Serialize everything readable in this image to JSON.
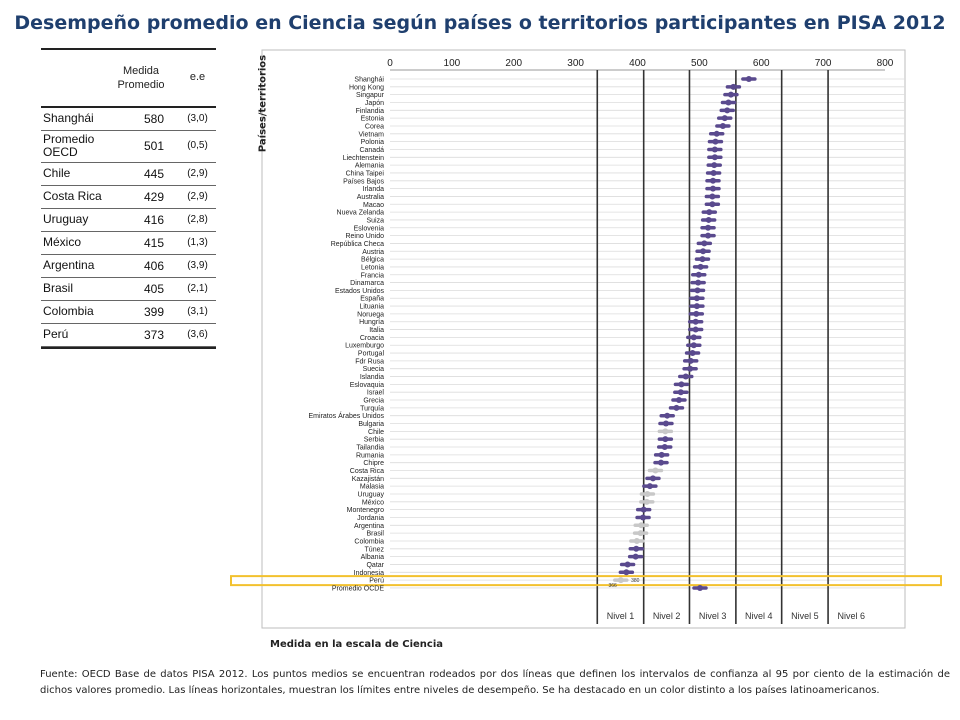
{
  "title": "Desempeño promedio en Ciencia según países o territorios participantes en PISA 2012",
  "table": {
    "header_mean": "Medida Promedio",
    "header_se": "e.e",
    "rows": [
      {
        "country": "Shanghái",
        "mean": "580",
        "se": "(3,0)"
      },
      {
        "country": "Promedio OECD",
        "mean": "501",
        "se": "(0,5)"
      },
      {
        "country": "Chile",
        "mean": "445",
        "se": "(2,9)"
      },
      {
        "country": "Costa Rica",
        "mean": "429",
        "se": "(2,9)"
      },
      {
        "country": "Uruguay",
        "mean": "416",
        "se": "(2,8)"
      },
      {
        "country": "México",
        "mean": "415",
        "se": "(1,3)"
      },
      {
        "country": "Argentina",
        "mean": "406",
        "se": "(3,9)"
      },
      {
        "country": "Brasil",
        "mean": "405",
        "se": "(2,1)"
      },
      {
        "country": "Colombia",
        "mean": "399",
        "se": "(3,1)"
      },
      {
        "country": "Perú",
        "mean": "373",
        "se": "(3,6)"
      }
    ]
  },
  "chart_data": {
    "type": "scatter",
    "title": "",
    "xlabel": "Medida en la escala de Ciencia",
    "ylabel": "Países/territorios",
    "xlim": [
      0,
      800
    ],
    "xticks": [
      0,
      100,
      200,
      300,
      400,
      500,
      600,
      700,
      800
    ],
    "grid": true,
    "levels": [
      {
        "label": "Nivel 1",
        "lower": 335
      },
      {
        "label": "Nivel 2",
        "lower": 410
      },
      {
        "label": "Nivel 3",
        "lower": 484
      },
      {
        "label": "Nivel 4",
        "lower": 559
      },
      {
        "label": "Nivel 5",
        "lower": 633
      },
      {
        "label": "Nivel 6",
        "lower": 708
      }
    ],
    "countries": [
      {
        "name": "Shanghái",
        "mean": 580,
        "latam": false
      },
      {
        "name": "Hong Kong",
        "mean": 555,
        "latam": false
      },
      {
        "name": "Singapur",
        "mean": 551,
        "latam": false
      },
      {
        "name": "Japón",
        "mean": 547,
        "latam": false
      },
      {
        "name": "Finlandia",
        "mean": 545,
        "latam": false
      },
      {
        "name": "Estonia",
        "mean": 541,
        "latam": false
      },
      {
        "name": "Corea",
        "mean": 538,
        "latam": false
      },
      {
        "name": "Vietnam",
        "mean": 528,
        "latam": false
      },
      {
        "name": "Polonia",
        "mean": 526,
        "latam": false
      },
      {
        "name": "Canadá",
        "mean": 525,
        "latam": false
      },
      {
        "name": "Liechtenstein",
        "mean": 525,
        "latam": false
      },
      {
        "name": "Alemania",
        "mean": 524,
        "latam": false
      },
      {
        "name": "China Taipei",
        "mean": 523,
        "latam": false
      },
      {
        "name": "Países Bajos",
        "mean": 522,
        "latam": false
      },
      {
        "name": "Irlanda",
        "mean": 522,
        "latam": false
      },
      {
        "name": "Australia",
        "mean": 521,
        "latam": false
      },
      {
        "name": "Macao",
        "mean": 521,
        "latam": false
      },
      {
        "name": "Nueva Zelanda",
        "mean": 516,
        "latam": false
      },
      {
        "name": "Suiza",
        "mean": 515,
        "latam": false
      },
      {
        "name": "Eslovenia",
        "mean": 514,
        "latam": false
      },
      {
        "name": "Reino Unido",
        "mean": 514,
        "latam": false
      },
      {
        "name": "República Checa",
        "mean": 508,
        "latam": false
      },
      {
        "name": "Austria",
        "mean": 506,
        "latam": false
      },
      {
        "name": "Bélgica",
        "mean": 505,
        "latam": false
      },
      {
        "name": "Letonia",
        "mean": 502,
        "latam": false
      },
      {
        "name": "Francia",
        "mean": 499,
        "latam": false
      },
      {
        "name": "Dinamarca",
        "mean": 498,
        "latam": false
      },
      {
        "name": "Estados Unidos",
        "mean": 497,
        "latam": false
      },
      {
        "name": "España",
        "mean": 496,
        "latam": false
      },
      {
        "name": "Lituania",
        "mean": 496,
        "latam": false
      },
      {
        "name": "Noruega",
        "mean": 495,
        "latam": false
      },
      {
        "name": "Hungría",
        "mean": 494,
        "latam": false
      },
      {
        "name": "Italia",
        "mean": 494,
        "latam": false
      },
      {
        "name": "Croacia",
        "mean": 491,
        "latam": false
      },
      {
        "name": "Luxemburgo",
        "mean": 491,
        "latam": false
      },
      {
        "name": "Portugal",
        "mean": 489,
        "latam": false
      },
      {
        "name": "Fdr Rusa",
        "mean": 486,
        "latam": false
      },
      {
        "name": "Suecia",
        "mean": 485,
        "latam": false
      },
      {
        "name": "Islandia",
        "mean": 478,
        "latam": false
      },
      {
        "name": "Eslovaquia",
        "mean": 471,
        "latam": false
      },
      {
        "name": "Israel",
        "mean": 470,
        "latam": false
      },
      {
        "name": "Grecia",
        "mean": 467,
        "latam": false
      },
      {
        "name": "Turquía",
        "mean": 463,
        "latam": false
      },
      {
        "name": "Emiratos Árabes Unidos",
        "mean": 448,
        "latam": false
      },
      {
        "name": "Bulgaria",
        "mean": 446,
        "latam": false
      },
      {
        "name": "Chile",
        "mean": 445,
        "latam": true
      },
      {
        "name": "Serbia",
        "mean": 445,
        "latam": false
      },
      {
        "name": "Tailandia",
        "mean": 444,
        "latam": false
      },
      {
        "name": "Rumania",
        "mean": 439,
        "latam": false
      },
      {
        "name": "Chipre",
        "mean": 438,
        "latam": false
      },
      {
        "name": "Costa Rica",
        "mean": 429,
        "latam": true
      },
      {
        "name": "Kazajistán",
        "mean": 425,
        "latam": false
      },
      {
        "name": "Malasia",
        "mean": 420,
        "latam": false
      },
      {
        "name": "Uruguay",
        "mean": 416,
        "latam": true
      },
      {
        "name": "México",
        "mean": 415,
        "latam": true
      },
      {
        "name": "Montenegro",
        "mean": 410,
        "latam": false
      },
      {
        "name": "Jordania",
        "mean": 409,
        "latam": false
      },
      {
        "name": "Argentina",
        "mean": 406,
        "latam": true
      },
      {
        "name": "Brasil",
        "mean": 405,
        "latam": true
      },
      {
        "name": "Colombia",
        "mean": 399,
        "latam": true
      },
      {
        "name": "Túnez",
        "mean": 398,
        "latam": false
      },
      {
        "name": "Albania",
        "mean": 397,
        "latam": false
      },
      {
        "name": "Qatar",
        "mean": 384,
        "latam": false
      },
      {
        "name": "Indonesia",
        "mean": 382,
        "latam": false
      },
      {
        "name": "Perú",
        "mean": 373,
        "latam": true
      },
      {
        "name": "Promedio OCDE",
        "mean": 501,
        "latam": false
      }
    ],
    "peru_interval_labels": [
      "366",
      "380"
    ],
    "colors": {
      "point": "#5a4a8e",
      "latam": "#c8c8c8",
      "highlight": "#f2c12e",
      "level_line": "#333333"
    }
  },
  "footnote": "Fuente: OECD Base de datos PISA 2012. Los puntos medios se encuentran rodeados por dos líneas que definen los intervalos de confianza al 95 por ciento de la estimación de dichos valores promedio. Las líneas horizontales, muestran los límites entre niveles de desempeño. Se ha destacado en un color distinto a los países latinoamericanos."
}
